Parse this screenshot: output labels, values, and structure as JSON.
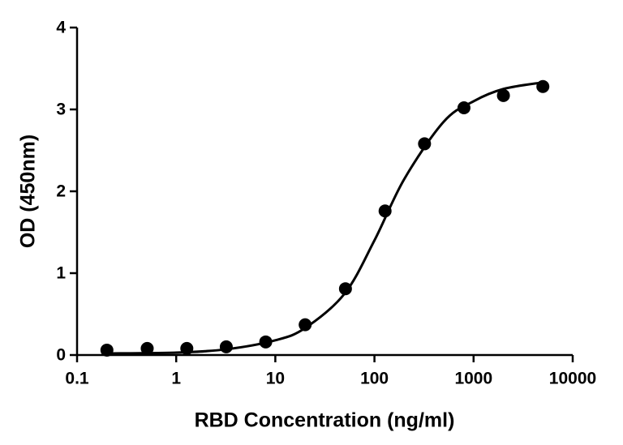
{
  "chart_data": {
    "type": "scatter",
    "xlabel": "RBD Concentration (ng/ml)",
    "ylabel": "OD (450nm)",
    "xscale": "log",
    "xlim": [
      0.1,
      10000
    ],
    "xticks": [
      0.1,
      1,
      10,
      100,
      1000,
      10000
    ],
    "ylim": [
      0,
      4
    ],
    "yticks": [
      0,
      1,
      2,
      3,
      4
    ],
    "series": [
      {
        "kind": "points",
        "color": "#000000",
        "x": [
          0.2,
          0.51,
          1.28,
          3.2,
          8,
          20,
          51,
          128,
          320,
          800,
          2000,
          5000
        ],
        "values": [
          0.06,
          0.08,
          0.08,
          0.1,
          0.16,
          0.37,
          0.81,
          1.76,
          2.58,
          3.02,
          3.17,
          3.28
        ]
      },
      {
        "kind": "curve",
        "color": "#000000",
        "x": [
          0.2,
          1,
          3.2,
          10,
          20,
          50,
          100,
          200,
          500,
          1000,
          2000,
          5000
        ],
        "values": [
          0.02,
          0.03,
          0.07,
          0.18,
          0.33,
          0.75,
          1.4,
          2.15,
          2.85,
          3.1,
          3.25,
          3.33
        ]
      }
    ]
  }
}
